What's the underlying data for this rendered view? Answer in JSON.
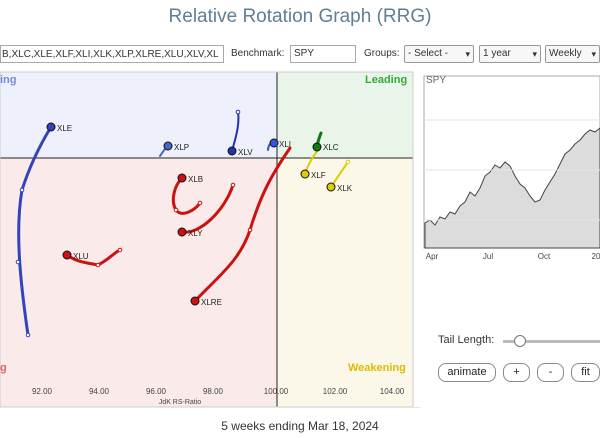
{
  "title": "Relative Rotation Graph (RRG)",
  "controls": {
    "symbols_value": "B,XLC,XLE,XLF,XLI,XLK,XLP,XLRE,XLU,XLV,XL",
    "benchmark_label": "Benchmark:",
    "benchmark_value": "SPY",
    "groups_label": "Groups:",
    "groups_value": "- Select -",
    "period_value": "1 year",
    "interval_value": "Weekly"
  },
  "quadrants": {
    "leading": "Leading",
    "lagging_partial": "ing",
    "weakening": "Weakening",
    "lagging_bottom": "g"
  },
  "x_axis": {
    "label": "JdK RS-Ratio",
    "ticks": [
      "92.00",
      "94.00",
      "96.00",
      "98.00",
      "100.00",
      "102.00",
      "104.00"
    ]
  },
  "securities": [
    {
      "symbol": "XLE",
      "color": "#3344bb"
    },
    {
      "symbol": "XLP",
      "color": "#4466cc"
    },
    {
      "symbol": "XLV",
      "color": "#2233aa"
    },
    {
      "symbol": "XLI",
      "color": "#3355dd"
    },
    {
      "symbol": "XLC",
      "color": "#117711"
    },
    {
      "symbol": "XLF",
      "color": "#ddcc00"
    },
    {
      "symbol": "XLK",
      "color": "#ddcc00"
    },
    {
      "symbol": "XLB",
      "color": "#cc1111"
    },
    {
      "symbol": "XLY",
      "color": "#cc1111"
    },
    {
      "symbol": "XLU",
      "color": "#cc1111"
    },
    {
      "symbol": "XLRE",
      "color": "#cc1111"
    }
  ],
  "price_chart": {
    "symbol": "SPY",
    "x_labels": [
      "Apr",
      "Jul",
      "Oct",
      "20"
    ]
  },
  "tail_length_label": "Tail Length:",
  "buttons": {
    "animate": "animate",
    "plus": "+",
    "minus": "-",
    "fit": "fit"
  },
  "footer": "5 weeks ending Mar 18, 2024"
}
